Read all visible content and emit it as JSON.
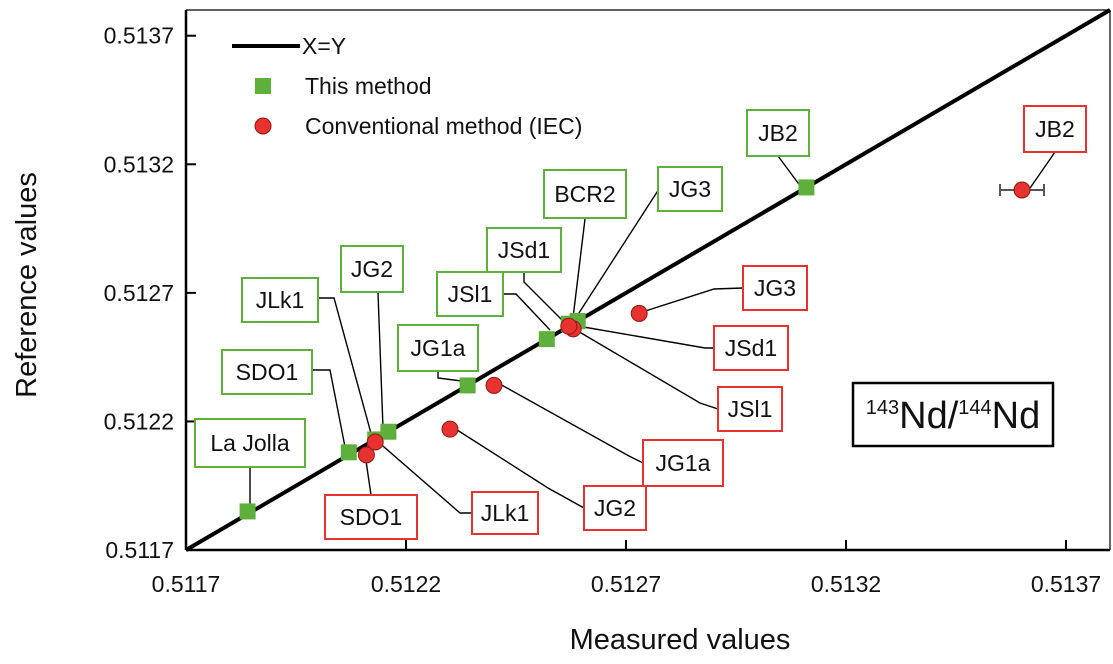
{
  "chart_data": {
    "type": "scatter",
    "xlabel": "Measured values",
    "ylabel": "Reference values",
    "xlim": [
      0.5117,
      0.5138
    ],
    "ylim": [
      0.5117,
      0.5138
    ],
    "x_ticks": [
      "0.5117",
      "0.5122",
      "0.5127",
      "0.5132",
      "0.5137"
    ],
    "y_ticks": [
      "0.5117",
      "0.5122",
      "0.5127",
      "0.5132",
      "0.5137"
    ],
    "grid": false,
    "legend_position": "top-left",
    "inset_label": {
      "sup1": "143",
      "base1": "Nd/",
      "sup2": "144",
      "base2": "Nd"
    },
    "series": [
      {
        "name": "X=Y",
        "type": "line",
        "color": "#000000",
        "points": [
          [
            0.5117,
            0.5117
          ],
          [
            0.5138,
            0.5138
          ]
        ]
      },
      {
        "name": "This method",
        "type": "scatter",
        "marker": "square",
        "color": "#5FAF3C",
        "label_border": "#5FAF3C",
        "points": [
          {
            "label": "La Jolla",
            "x": 0.51184,
            "y": 0.51185
          },
          {
            "label": "SDO1",
            "x": 0.51207,
            "y": 0.51208
          },
          {
            "label": "JLk1",
            "x": 0.51213,
            "y": 0.51213
          },
          {
            "label": "JG2",
            "x": 0.51216,
            "y": 0.51216
          },
          {
            "label": "JG1a",
            "x": 0.51234,
            "y": 0.51234
          },
          {
            "label": "JSl1",
            "x": 0.51252,
            "y": 0.51252
          },
          {
            "label": "JSd1",
            "x": 0.51257,
            "y": 0.51258
          },
          {
            "label": "BCR2",
            "x": 0.51259,
            "y": 0.51259
          },
          {
            "label": "JG3",
            "x": 0.51259,
            "y": 0.51259
          },
          {
            "label": "JB2",
            "x": 0.51311,
            "y": 0.51311
          }
        ]
      },
      {
        "name": "Conventional method (IEC)",
        "type": "scatter",
        "marker": "circle",
        "color": "#E8322F",
        "label_border": "#E8322F",
        "points": [
          {
            "label": "SDO1",
            "x": 0.51211,
            "y": 0.51207
          },
          {
            "label": "JLk1",
            "x": 0.51213,
            "y": 0.51212,
            "xerr": 1e-05
          },
          {
            "label": "JG2",
            "x": 0.5123,
            "y": 0.51217
          },
          {
            "label": "JG1a",
            "x": 0.5124,
            "y": 0.51234,
            "xerr": 1e-05
          },
          {
            "label": "JSl1",
            "x": 0.51258,
            "y": 0.51256
          },
          {
            "label": "JSd1",
            "x": 0.51257,
            "y": 0.51257
          },
          {
            "label": "JG3",
            "x": 0.51273,
            "y": 0.51262
          },
          {
            "label": "JB2",
            "x": 0.5136,
            "y": 0.5131,
            "xerr": 5e-05
          }
        ]
      }
    ]
  }
}
